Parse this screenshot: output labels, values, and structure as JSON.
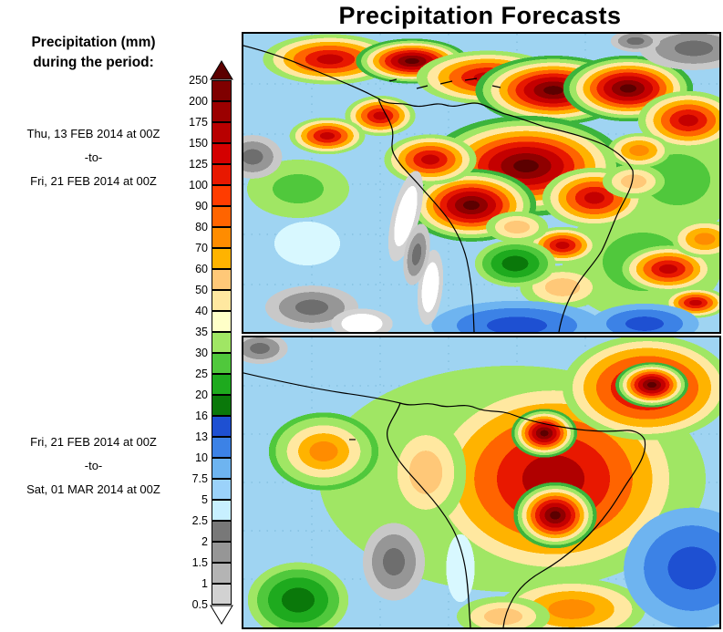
{
  "title": "Precipitation Forecasts",
  "legend": {
    "heading_line1": "Precipitation (mm)",
    "heading_line2": "during the period:"
  },
  "periods": [
    {
      "start": "Thu, 13 FEB 2014 at 00Z",
      "separator": "-to-",
      "end": "Fri, 21 FEB 2014 at 00Z"
    },
    {
      "start": "Fri, 21 FEB 2014 at 00Z",
      "separator": "-to-",
      "end": "Sat, 01 MAR 2014 at 00Z"
    }
  ],
  "colorbar": {
    "unit": "mm",
    "arrow_top_color": "#5c0000",
    "arrow_bottom_color": "#ffffff",
    "ticks": [
      "250",
      "200",
      "175",
      "150",
      "125",
      "100",
      "90",
      "80",
      "70",
      "60",
      "50",
      "40",
      "35",
      "30",
      "25",
      "20",
      "16",
      "13",
      "10",
      "7.5",
      "5",
      "2.5",
      "2",
      "1.5",
      "1",
      "0.5"
    ],
    "segments": [
      {
        "range": "200-250",
        "color": "#7f0000"
      },
      {
        "range": "175-200",
        "color": "#9b0000"
      },
      {
        "range": "150-175",
        "color": "#b80000"
      },
      {
        "range": "125-150",
        "color": "#d40000"
      },
      {
        "range": "100-125",
        "color": "#e81800"
      },
      {
        "range": "90-100",
        "color": "#ff3c00"
      },
      {
        "range": "80-90",
        "color": "#ff6400"
      },
      {
        "range": "70-80",
        "color": "#ff8c00"
      },
      {
        "range": "60-70",
        "color": "#ffb300"
      },
      {
        "range": "50-60",
        "color": "#ffc878"
      },
      {
        "range": "40-50",
        "color": "#ffe8a0"
      },
      {
        "range": "35-40",
        "color": "#ffffc8"
      },
      {
        "range": "30-35",
        "color": "#a0e664"
      },
      {
        "range": "25-30",
        "color": "#50c83c"
      },
      {
        "range": "20-25",
        "color": "#1eaa1e"
      },
      {
        "range": "16-20",
        "color": "#0a780a"
      },
      {
        "range": "13-16",
        "color": "#1e50d2"
      },
      {
        "range": "10-13",
        "color": "#3c82e6"
      },
      {
        "range": "7.5-10",
        "color": "#6eb4f0"
      },
      {
        "range": "5-7.5",
        "color": "#9bd2fa"
      },
      {
        "range": "2.5-5",
        "color": "#c8f0ff"
      },
      {
        "range": "2-2.5",
        "color": "#787878"
      },
      {
        "range": "1.5-2",
        "color": "#969696"
      },
      {
        "range": "1-1.5",
        "color": "#b4b4b4"
      },
      {
        "range": "0.5-1",
        "color": "#d2d2d2"
      }
    ]
  },
  "maps": {
    "background_color": "#9fd4f2",
    "coastline_color": "#000000",
    "graticule_color": "#74b4d6"
  }
}
